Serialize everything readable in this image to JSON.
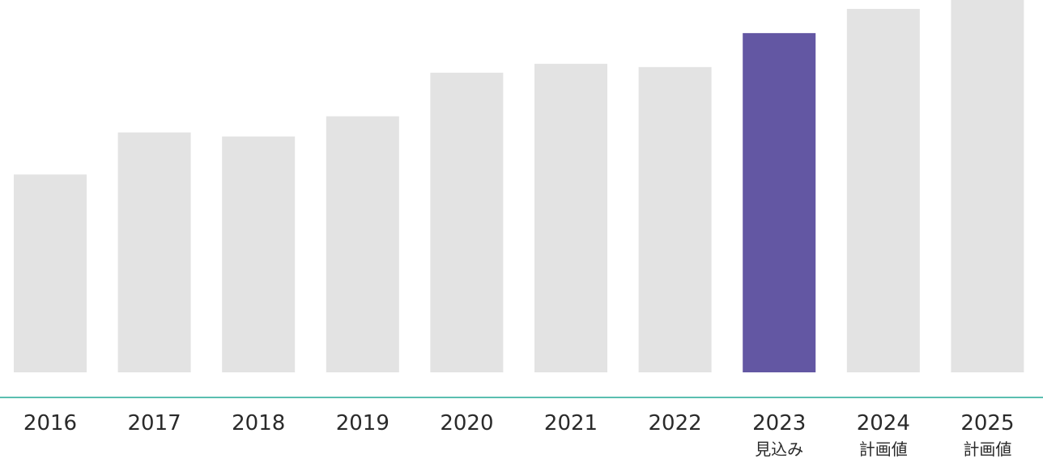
{
  "chart_data": {
    "type": "bar",
    "title": "",
    "xlabel": "",
    "ylabel": "",
    "categories": [
      "2016",
      "2017",
      "2018",
      "2019",
      "2020",
      "2021",
      "2022",
      "2023",
      "2024",
      "2025"
    ],
    "sublabels": [
      "",
      "",
      "",
      "",
      "",
      "",
      "",
      "見込み",
      "計画値",
      "計画値"
    ],
    "values": [
      245,
      297,
      292,
      317,
      371,
      382,
      378,
      420,
      450,
      461
    ],
    "ylim": [
      0,
      461
    ],
    "highlight_index": 7,
    "grid": false,
    "legend": "none",
    "colors": {
      "bar": "#e3e3e3",
      "highlight": "#6357a3",
      "axis": "#5bbfb0"
    }
  }
}
